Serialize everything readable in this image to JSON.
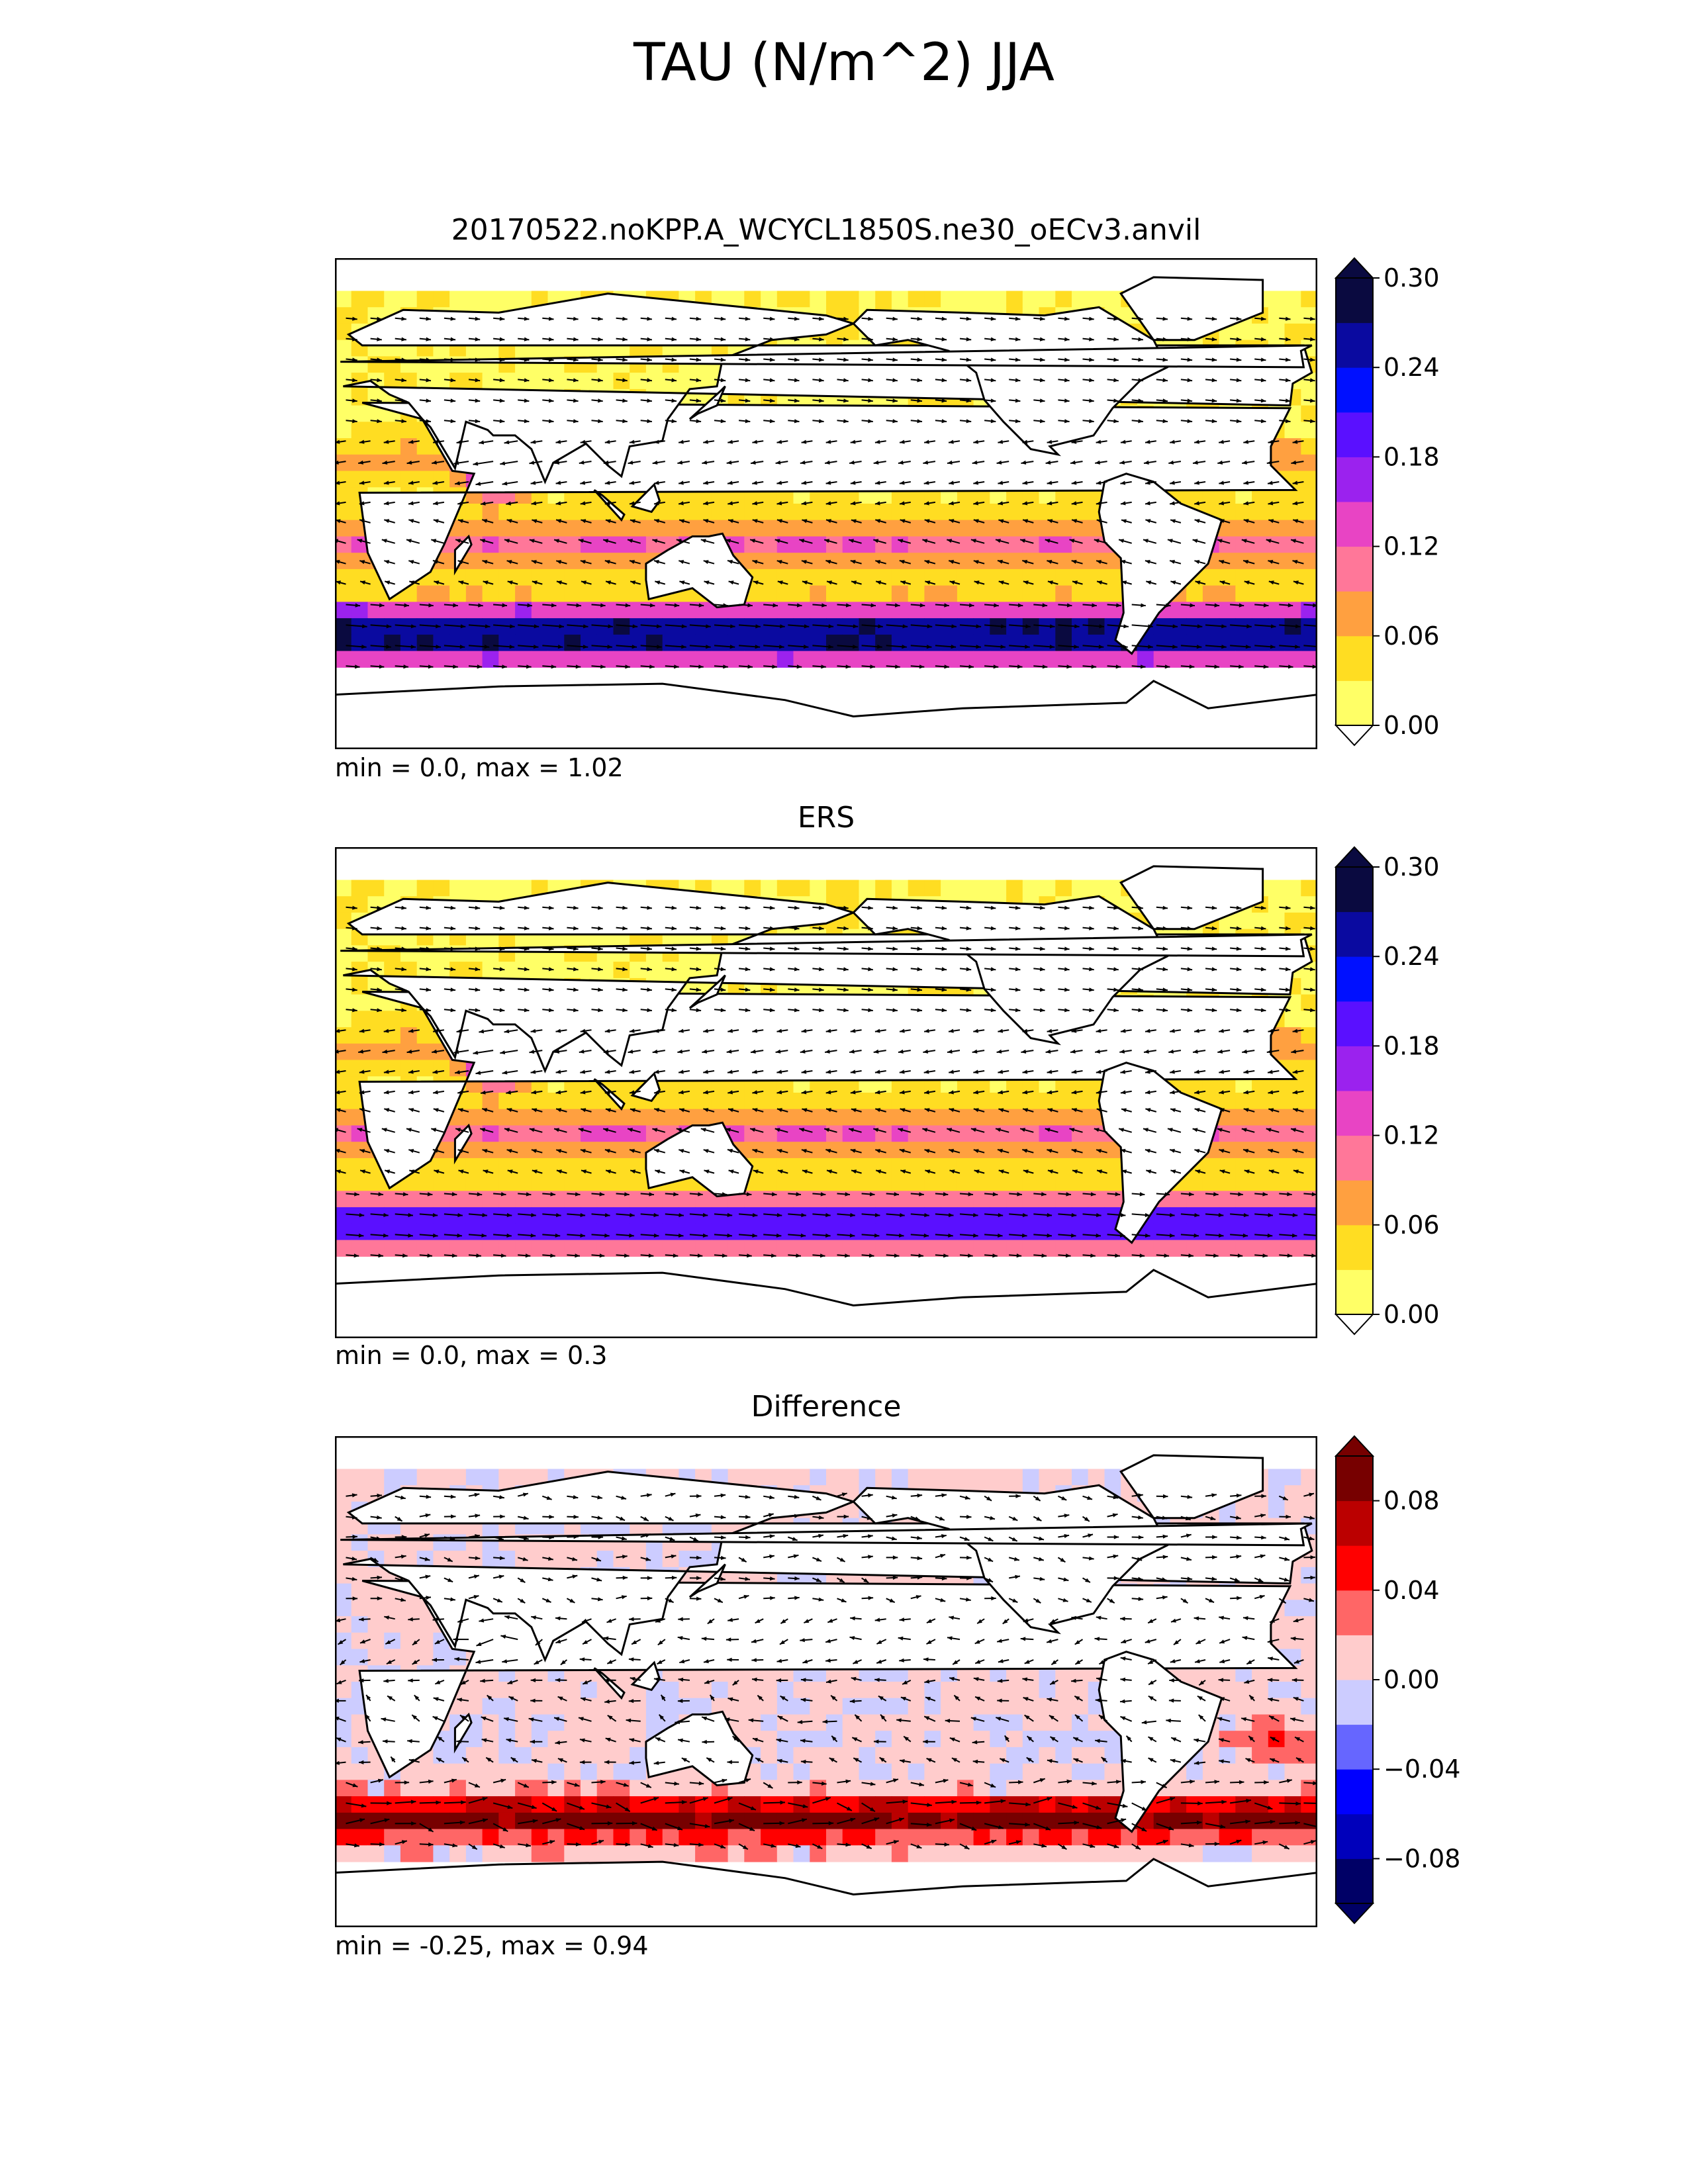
{
  "title": "TAU (N/m^2) JJA",
  "chart_data": [
    {
      "type": "heatmap",
      "title": "20170522.noKPP.A_WCYCL1850S.ne30_oECv3.anvil",
      "stats": "min = 0.0, max = 1.02",
      "colorbar": {
        "ticks": [
          "0.00",
          "0.06",
          "0.12",
          "0.18",
          "0.24",
          "0.30"
        ],
        "levels": [
          0.0,
          0.03,
          0.06,
          0.09,
          0.12,
          0.15,
          0.18,
          0.21,
          0.24,
          0.27,
          0.3
        ],
        "colors": [
          "#ffff66",
          "#ffdd22",
          "#ffa040",
          "#ff7799",
          "#e844c4",
          "#9b22ee",
          "#5a10ff",
          "#0010ff",
          "#0a0aa0",
          "#0a0a40"
        ],
        "extend": "both"
      }
    },
    {
      "type": "heatmap",
      "title": "ERS",
      "stats": "min = 0.0, max = 0.3",
      "colorbar": {
        "ticks": [
          "0.00",
          "0.06",
          "0.12",
          "0.18",
          "0.24",
          "0.30"
        ],
        "levels": [
          0.0,
          0.03,
          0.06,
          0.09,
          0.12,
          0.15,
          0.18,
          0.21,
          0.24,
          0.27,
          0.3
        ],
        "colors": [
          "#ffff66",
          "#ffdd22",
          "#ffa040",
          "#ff7799",
          "#e844c4",
          "#9b22ee",
          "#5a10ff",
          "#0010ff",
          "#0a0aa0",
          "#0a0a40"
        ],
        "extend": "both"
      }
    },
    {
      "type": "heatmap",
      "title": "Difference",
      "stats": "min = -0.25, max = 0.94",
      "colorbar": {
        "ticks": [
          "−0.08",
          "−0.04",
          "0.00",
          "0.04",
          "0.08"
        ],
        "levels": [
          -0.1,
          -0.08,
          -0.06,
          -0.04,
          -0.02,
          0.0,
          0.02,
          0.04,
          0.06,
          0.08,
          0.1
        ],
        "colors": [
          "#000066",
          "#0000bb",
          "#0000ff",
          "#6666ff",
          "#ccccff",
          "#ffcccc",
          "#ff6666",
          "#ff0000",
          "#bb0000",
          "#770000"
        ],
        "extend": "both"
      }
    }
  ]
}
